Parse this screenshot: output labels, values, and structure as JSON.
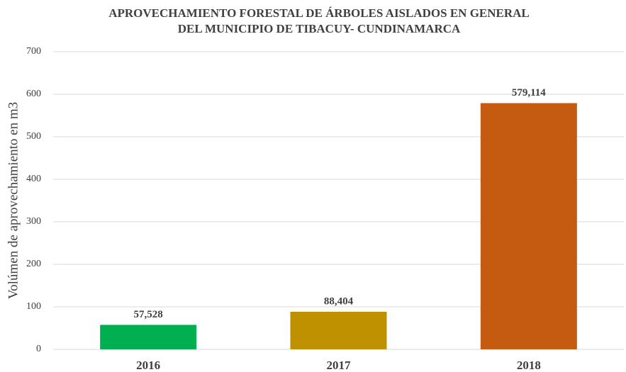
{
  "chart_data": {
    "type": "bar",
    "title": [
      "APROVECHAMIENTO FORESTAL DE ÁRBOLES AISLADOS EN GENERAL",
      "DEL MUNICIPIO DE TIBACUY- CUNDINAMARCA"
    ],
    "y_label": "Volúmen de aprovechamiento en m3",
    "categories": [
      "2016",
      "2017",
      "2018"
    ],
    "values": [
      57.528,
      88.404,
      579.114
    ],
    "value_labels": [
      "57,528",
      "88,404",
      "579,114"
    ],
    "colors": [
      "#00b050",
      "#bf9000",
      "#c55a11"
    ],
    "ylim": [
      0,
      700
    ],
    "yticks": [
      0,
      100,
      200,
      300,
      400,
      500,
      600,
      700
    ],
    "grid": true
  }
}
